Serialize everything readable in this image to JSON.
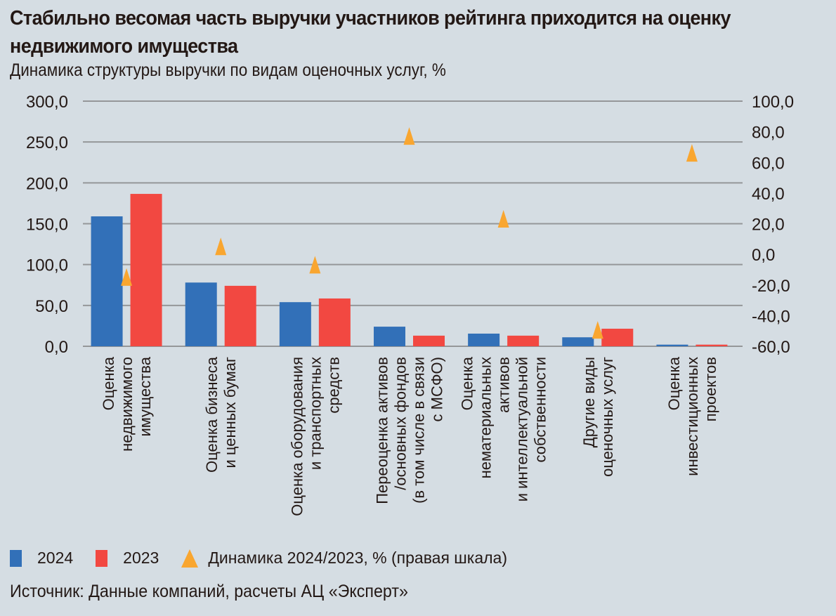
{
  "header": {
    "title": "Стабильно весомая часть выручки участников рейтинга приходится на оценку недвижимого имущества",
    "subtitle": "Динамика структуры выручки по видам оценочных услуг, %"
  },
  "footer": {
    "source": "Источник: Данные компаний, расчеты АЦ «Эксперт»"
  },
  "chart_data": {
    "type": "bar",
    "title": "Стабильно весомая часть выручки участников рейтинга приходится на оценку недвижимого имущества",
    "subtitle": "Динамика структуры выручки по видам оценочных услуг, %",
    "categories": [
      [
        "Оценка",
        "недвижимого",
        "имущества"
      ],
      [
        "Оценка бизнеса",
        "и ценных бумаг"
      ],
      [
        "Оценка оборудования",
        "и транспортных",
        "средств"
      ],
      [
        "Переоценка активов",
        "/основных фондов",
        "(в том числе в связи",
        "с МСФО)"
      ],
      [
        "Оценка",
        "нематериальных",
        "активов",
        "и интеллектуальной",
        "собственности"
      ],
      [
        "Другие виды",
        "оценочных услуг"
      ],
      [
        "Оценка",
        "инвестиционных",
        "проектов"
      ]
    ],
    "series": [
      {
        "name": "2024",
        "type": "bar",
        "axis": "left",
        "color": "#3270b8",
        "values": [
          159,
          78,
          54,
          24,
          15.5,
          11,
          2
        ]
      },
      {
        "name": "2023",
        "type": "bar",
        "axis": "left",
        "color": "#f24841",
        "values": [
          186.5,
          74,
          58.5,
          13,
          13,
          21.5,
          2
        ]
      },
      {
        "name": "Динамика 2024/2023, % (правая шкала)",
        "type": "scatter",
        "marker": "triangle",
        "axis": "right",
        "color": "#f9a630",
        "values": [
          -15,
          5,
          -7,
          77,
          23,
          -49.5,
          66
        ]
      }
    ],
    "left_axis": {
      "min": 0,
      "max": 300,
      "step": 50,
      "ticks": [
        "0,0",
        "50,0",
        "100,0",
        "150,0",
        "200,0",
        "250,0",
        "300,0"
      ]
    },
    "right_axis": {
      "min": -60,
      "max": 100,
      "step": 20,
      "ticks": [
        "-60,0",
        "-40,0",
        "-20,0",
        "0,0",
        "20,0",
        "40,0",
        "60,0",
        "80,0",
        "100,0"
      ]
    },
    "grid": true,
    "legend": {
      "position": "bottom-left",
      "entries": [
        "2024",
        "2023",
        "Динамика 2024/2023, % (правая шкала)"
      ]
    }
  }
}
